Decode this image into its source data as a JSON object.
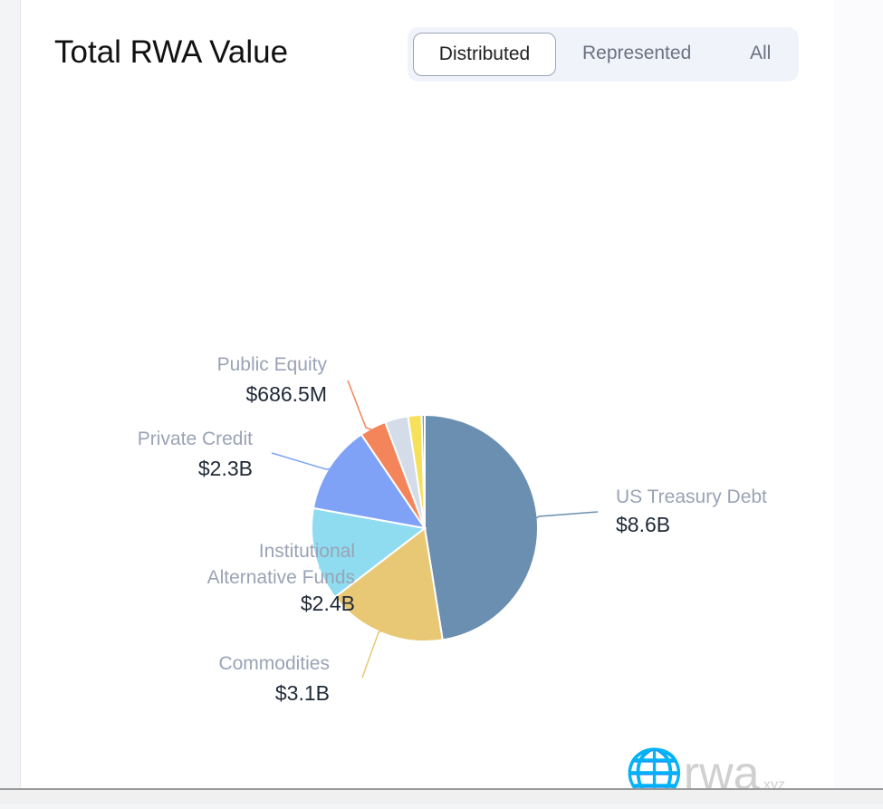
{
  "title": "Total RWA Value",
  "tabs": [
    {
      "label": "Distributed",
      "active": true
    },
    {
      "label": "Represented",
      "active": false
    },
    {
      "label": "All",
      "active": false
    }
  ],
  "watermark": "rwa.xyz",
  "chart_data": {
    "type": "pie",
    "start": "top",
    "direction": "clockwise",
    "slices": [
      {
        "name": "US Treasury Debt",
        "label": "$8.6B",
        "value": 8.6,
        "color": "#6a8fb1"
      },
      {
        "name": "Commodities",
        "label": "$3.1B",
        "value": 3.1,
        "color": "#e8c874"
      },
      {
        "name": "Institutional Alternative Funds",
        "label": "$2.4B",
        "value": 2.4,
        "color": "#8fdcf0"
      },
      {
        "name": "Private Credit",
        "label": "$2.3B",
        "value": 2.3,
        "color": "#7fa2f7"
      },
      {
        "name": "Public Equity",
        "label": "$686.5M",
        "value": 0.6865,
        "color": "#f4845a"
      },
      {
        "name": "",
        "label": "",
        "value": 0.6,
        "color": "#d3dce8"
      },
      {
        "name": "",
        "label": "",
        "value": 0.35,
        "color": "#f7e05a"
      },
      {
        "name": "",
        "label": "",
        "value": 0.08,
        "color": "#7a9cc0"
      }
    ]
  }
}
